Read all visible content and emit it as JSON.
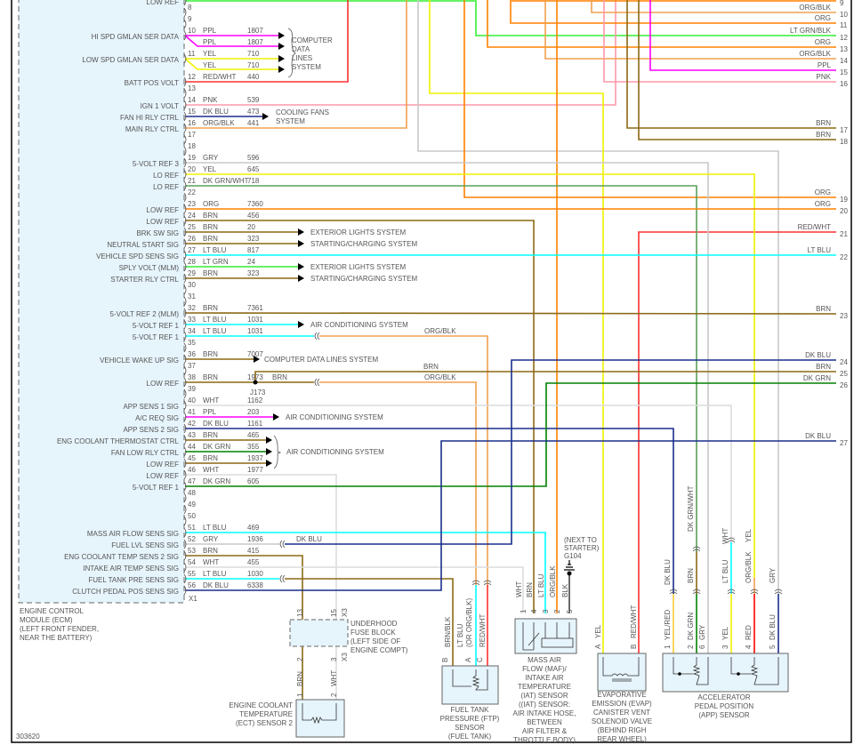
{
  "wire_colors": {
    "PPL": "#ff00ff",
    "YEL": "#ffff00",
    "RED/WHT": "#ff3030",
    "PNK": "#ff99aa",
    "DK BLU": "#1a2e8c",
    "ORG/BLK": "#f0a050",
    "GRY": "#c8c8c8",
    "DK GRN/WHT": "#5aa05a",
    "ORG": "#ff8000",
    "BRN": "#8b6914",
    "LT BLU": "#00ffff",
    "LT GRN": "#33ee33",
    "WHT": "#dcdcdc",
    "DK GRN": "#008000",
    "LT GRN/BLK": "#33dd33",
    "RED": "#ff0000",
    "BLK": "#444444",
    "YEL/RED": "#ffcc33"
  },
  "ecm": {
    "rows": [
      {
        "pin": "",
        "label": "LOW REF",
        "wires": [
          {
            "color_name": "",
            "circuit": "",
            "color": "LT GRN"
          }
        ]
      },
      {
        "pin": "8",
        "label": ""
      },
      {
        "pin": "9",
        "label": ""
      },
      {
        "pin": "10",
        "label": "HI SPD GMLAN SER DATA",
        "wires": [
          {
            "color_name": "PPL",
            "circuit": "1807",
            "color": "PPL"
          },
          {
            "color_name": "PPL",
            "circuit": "1807",
            "color": "PPL"
          }
        ]
      },
      {
        "pin": "11",
        "label": "LOW SPD GMLAN SER DATA",
        "wires": [
          {
            "color_name": "YEL",
            "circuit": "710",
            "color": "YEL"
          },
          {
            "color_name": "YEL",
            "circuit": "710",
            "color": "YEL"
          }
        ]
      },
      {
        "pin": "12",
        "label": "BATT POS VOLT",
        "wires": [
          {
            "color_name": "RED/WHT",
            "circuit": "440",
            "color": "RED/WHT"
          }
        ]
      },
      {
        "pin": "13",
        "label": ""
      },
      {
        "pin": "14",
        "label": "IGN 1 VOLT",
        "wires": [
          {
            "color_name": "PNK",
            "circuit": "539",
            "color": "PNK"
          }
        ]
      },
      {
        "pin": "15",
        "label": "FAN HI RLY CTRL",
        "wires": [
          {
            "color_name": "DK BLU",
            "circuit": "473",
            "color": "DK BLU"
          }
        ]
      },
      {
        "pin": "16",
        "label": "MAIN RLY CTRL",
        "wires": [
          {
            "color_name": "ORG/BLK",
            "circuit": "441",
            "color": "ORG/BLK"
          }
        ]
      },
      {
        "pin": "17",
        "label": ""
      },
      {
        "pin": "18",
        "label": ""
      },
      {
        "pin": "19",
        "label": "5-VOLT REF 3",
        "wires": [
          {
            "color_name": "GRY",
            "circuit": "596",
            "color": "GRY"
          }
        ]
      },
      {
        "pin": "20",
        "label": "LO REF",
        "wires": [
          {
            "color_name": "YEL",
            "circuit": "645",
            "color": "YEL"
          }
        ]
      },
      {
        "pin": "21",
        "label": "LO REF",
        "wires": [
          {
            "color_name": "DK GRN/WHT",
            "circuit": "718",
            "color": "DK GRN/WHT"
          }
        ]
      },
      {
        "pin": "22",
        "label": ""
      },
      {
        "pin": "23",
        "label": "LOW REF",
        "wires": [
          {
            "color_name": "ORG",
            "circuit": "7360",
            "color": "ORG"
          }
        ]
      },
      {
        "pin": "24",
        "label": "LOW REF",
        "wires": [
          {
            "color_name": "BRN",
            "circuit": "456",
            "color": "BRN"
          }
        ]
      },
      {
        "pin": "25",
        "label": "BRK SW SIG",
        "wires": [
          {
            "color_name": "BRN",
            "circuit": "20",
            "color": "BRN"
          }
        ]
      },
      {
        "pin": "26",
        "label": "NEUTRAL START SIG",
        "wires": [
          {
            "color_name": "BRN",
            "circuit": "323",
            "color": "BRN"
          }
        ]
      },
      {
        "pin": "27",
        "label": "VEHICLE SPD SENS SIG",
        "wires": [
          {
            "color_name": "LT BLU",
            "circuit": "817",
            "color": "LT BLU"
          }
        ]
      },
      {
        "pin": "28",
        "label": "SPLY VOLT (MLM)",
        "wires": [
          {
            "color_name": "LT GRN",
            "circuit": "24",
            "color": "LT GRN"
          }
        ]
      },
      {
        "pin": "29",
        "label": "STARTER RLY CTRL",
        "wires": [
          {
            "color_name": "BRN",
            "circuit": "323",
            "color": "BRN"
          }
        ]
      },
      {
        "pin": "30",
        "label": ""
      },
      {
        "pin": "31",
        "label": ""
      },
      {
        "pin": "32",
        "label": "5-VOLT REF 2 (MLM)",
        "wires": [
          {
            "color_name": "BRN",
            "circuit": "7361",
            "color": "BRN"
          }
        ]
      },
      {
        "pin": "33",
        "label": "5-VOLT REF 1",
        "wires": [
          {
            "color_name": "LT BLU",
            "circuit": "1031",
            "color": "LT BLU"
          }
        ]
      },
      {
        "pin": "34",
        "label": "5-VOLT REF 1",
        "wires": [
          {
            "color_name": "LT BLU",
            "circuit": "1031",
            "color": "LT BLU"
          }
        ]
      },
      {
        "pin": "35",
        "label": ""
      },
      {
        "pin": "36",
        "label": "VEHICLE WAKE UP SIG",
        "wires": [
          {
            "color_name": "BRN",
            "circuit": "7007",
            "color": "BRN"
          }
        ]
      },
      {
        "pin": "37",
        "label": ""
      },
      {
        "pin": "38",
        "label": "LOW REF",
        "wires": [
          {
            "color_name": "BRN",
            "circuit": "1973",
            "color": "BRN"
          }
        ]
      },
      {
        "pin": "39",
        "label": ""
      },
      {
        "pin": "40",
        "label": "APP SENS 1 SIG",
        "wires": [
          {
            "color_name": "WHT",
            "circuit": "1162",
            "color": "WHT"
          }
        ]
      },
      {
        "pin": "41",
        "label": "A/C REQ SIG",
        "wires": [
          {
            "color_name": "PPL",
            "circuit": "203",
            "color": "PPL"
          }
        ]
      },
      {
        "pin": "42",
        "label": "APP SENS 2 SIG",
        "wires": [
          {
            "color_name": "DK BLU",
            "circuit": "1161",
            "color": "DK BLU"
          }
        ]
      },
      {
        "pin": "43",
        "label": "ENG COOLANT THERMOSTAT CTRL",
        "wires": [
          {
            "color_name": "BRN",
            "circuit": "465",
            "color": "BRN"
          }
        ]
      },
      {
        "pin": "44",
        "label": "FAN LOW RLY CTRL",
        "wires": [
          {
            "color_name": "DK GRN",
            "circuit": "355",
            "color": "DK GRN"
          }
        ]
      },
      {
        "pin": "45",
        "label": "LOW REF",
        "wires": [
          {
            "color_name": "BRN",
            "circuit": "1937",
            "color": "BRN"
          }
        ]
      },
      {
        "pin": "46",
        "label": "LOW REF",
        "wires": [
          {
            "color_name": "WHT",
            "circuit": "1977",
            "color": "WHT"
          }
        ]
      },
      {
        "pin": "47",
        "label": "5-VOLT REF 1",
        "wires": [
          {
            "color_name": "DK GRN",
            "circuit": "605",
            "color": "DK GRN"
          }
        ]
      },
      {
        "pin": "48",
        "label": ""
      },
      {
        "pin": "49",
        "label": ""
      },
      {
        "pin": "50",
        "label": ""
      },
      {
        "pin": "51",
        "label": "MASS AIR FLOW SENS SIG",
        "wires": [
          {
            "color_name": "LT BLU",
            "circuit": "469",
            "color": "LT BLU"
          }
        ]
      },
      {
        "pin": "52",
        "label": "FUEL LVL SENS SIG",
        "wires": [
          {
            "color_name": "GRY",
            "circuit": "1936",
            "color": "GRY"
          }
        ]
      },
      {
        "pin": "53",
        "label": "ENG COOLANT TEMP SENS 2 SIG",
        "wires": [
          {
            "color_name": "BRN",
            "circuit": "415",
            "color": "BRN"
          }
        ]
      },
      {
        "pin": "54",
        "label": "INTAKE AIR TEMP SENS SIG",
        "wires": [
          {
            "color_name": "WHT",
            "circuit": "455",
            "color": "WHT"
          }
        ]
      },
      {
        "pin": "55",
        "label": "FUEL TANK PRE SENS SIG",
        "wires": [
          {
            "color_name": "LT BLU",
            "circuit": "1030",
            "color": "LT BLU"
          }
        ]
      },
      {
        "pin": "56",
        "label": "CLUTCH PEDAL POS SENS SIG",
        "wires": [
          {
            "color_name": "DK BLU",
            "circuit": "6338",
            "color": "DK BLU"
          }
        ]
      }
    ],
    "connector": "X1",
    "name": [
      "ENGINE CONTROL",
      "MODULE (ECM)",
      "(LEFT FRONT FENDER,",
      "NEAR THE BATTERY)"
    ]
  },
  "destinations": {
    "computer_data_lines": [
      "COMPUTER",
      "DATA",
      "LINES",
      "SYSTEM"
    ],
    "cooling_fans": [
      "COOLING FANS",
      "SYSTEM"
    ],
    "exterior_lights_1": "EXTERIOR LIGHTS SYSTEM",
    "starting_charging_1": "STARTING/CHARGING SYSTEM",
    "exterior_lights_2": "EXTERIOR LIGHTS SYSTEM",
    "starting_charging_2": "STARTING/CHARGING SYSTEM",
    "air_conditioning_1": "AIR CONDITIONING SYSTEM",
    "computer_data_lines_2": "COMPUTER DATA LINES SYSTEM",
    "air_conditioning_2": "AIR CONDITIONING SYSTEM",
    "air_conditioning_3": "AIR CONDITIONING SYSTEM"
  },
  "mid_labels": {
    "org_blk_1": "ORG/BLK",
    "brn_1": "BRN",
    "org_blk_2": "ORG/BLK",
    "brn_j173": "BRN",
    "j173": "J173",
    "dk_blu": "DK BLU"
  },
  "right_connector": [
    {
      "pin": "9",
      "color_name": "",
      "color": "ORG"
    },
    {
      "pin": "10",
      "color_name": "ORG/BLK",
      "color": "ORG/BLK"
    },
    {
      "pin": "11",
      "color_name": "ORG",
      "color": "ORG"
    },
    {
      "pin": "12",
      "color_name": "LT GRN/BLK",
      "color": "LT GRN/BLK"
    },
    {
      "pin": "13",
      "color_name": "ORG",
      "color": "ORG"
    },
    {
      "pin": "14",
      "color_name": "ORG/BLK",
      "color": "ORG/BLK"
    },
    {
      "pin": "15",
      "color_name": "PPL",
      "color": "PPL"
    },
    {
      "pin": "16",
      "color_name": "PNK",
      "color": "PNK"
    },
    {
      "pin": "17",
      "color_name": "BRN",
      "color": "BRN"
    },
    {
      "pin": "18",
      "color_name": "BRN",
      "color": "BRN"
    },
    {
      "pin": "19",
      "color_name": "ORG",
      "color": "ORG"
    },
    {
      "pin": "20",
      "color_name": "ORG",
      "color": "ORG"
    },
    {
      "pin": "21",
      "color_name": "RED/WHT",
      "color": "RED/WHT"
    },
    {
      "pin": "22",
      "color_name": "LT BLU",
      "color": "LT BLU"
    },
    {
      "pin": "23",
      "color_name": "BRN",
      "color": "BRN"
    },
    {
      "pin": "24",
      "color_name": "DK BLU",
      "color": "DK BLU"
    },
    {
      "pin": "25",
      "color_name": "BRN",
      "color": "BRN"
    },
    {
      "pin": "26",
      "color_name": "DK GRN",
      "color": "DK GRN"
    },
    {
      "pin": "27",
      "color_name": "DK BLU",
      "color": "DK BLU"
    }
  ],
  "components": {
    "fuse_block": {
      "name": [
        "UNDERHOOD",
        "FUSE BLOCK",
        "(LEFT SIDE OF",
        "ENGINE COMPT)"
      ],
      "top_pins": [
        "13",
        "15"
      ],
      "bottom_pins": [
        "2",
        "3"
      ],
      "connector": "X3",
      "wire_labels": [
        "BRN",
        "WHT"
      ]
    },
    "ect_sensor": {
      "name": [
        "ENGINE COOLANT",
        "TEMPERATURE",
        "(ECT) SENSOR 2"
      ],
      "pins": [
        "1",
        "2"
      ]
    },
    "ftp_sensor": {
      "name": [
        "FUEL TANK",
        "PRESSURE (FTP)",
        "SENSOR",
        "(FUEL TANK)"
      ],
      "pins": [
        "B",
        "A",
        "C"
      ],
      "wire_labels": [
        "BRN/BLK",
        "LT BLU",
        "(OR ORG/BLK)",
        "RED/WHT"
      ]
    },
    "maf_sensor": {
      "name": [
        "MASS AIR",
        "FLOW (MAF)/",
        "INTAKE AIR",
        "TEMPERATURE",
        "(IAT) SENSOR",
        "((IAT) SENSOR:",
        "AIR INTAKE HOSE,",
        "BETWEEN",
        "AIR FILTER &",
        "THROTTLE BODY)"
      ],
      "pins": [
        "1",
        "4",
        "3",
        "2",
        "5"
      ],
      "wire_labels": [
        "WHT",
        "BRN",
        "LT BLU",
        "ORG/BLK",
        "BLK"
      ]
    },
    "ground": {
      "name": [
        "(NEXT TO",
        "STARTER)",
        "G104"
      ]
    },
    "evap_valve": {
      "name": [
        "EVAPORATIVE",
        "EMISSION (EVAP)",
        "CANISTER VENT",
        "SOLENOID VALVE",
        "(BEHIND RIGH",
        "REAR WHEEL)"
      ],
      "pins": [
        "A",
        "B"
      ],
      "wire_labels": [
        "YEL",
        "RED/WHT"
      ]
    },
    "app_sensor": {
      "name": [
        "ACCELERATOR",
        "PEDAL POSITION",
        "(APP) SENSOR"
      ],
      "pins": [
        "1",
        "2",
        "6",
        "3",
        "4",
        "5"
      ],
      "lower_labels": [
        "YEL/RED",
        "DK GRN",
        "GRY",
        "YEL",
        "RED",
        "DK BLU"
      ],
      "upper_labels": [
        "DK BLU",
        "DK GRN/WHT",
        "BRN",
        "WHT",
        "LT BLU",
        "YEL",
        "ORG/BLK",
        "GRY"
      ]
    }
  },
  "figure_id": "303620"
}
